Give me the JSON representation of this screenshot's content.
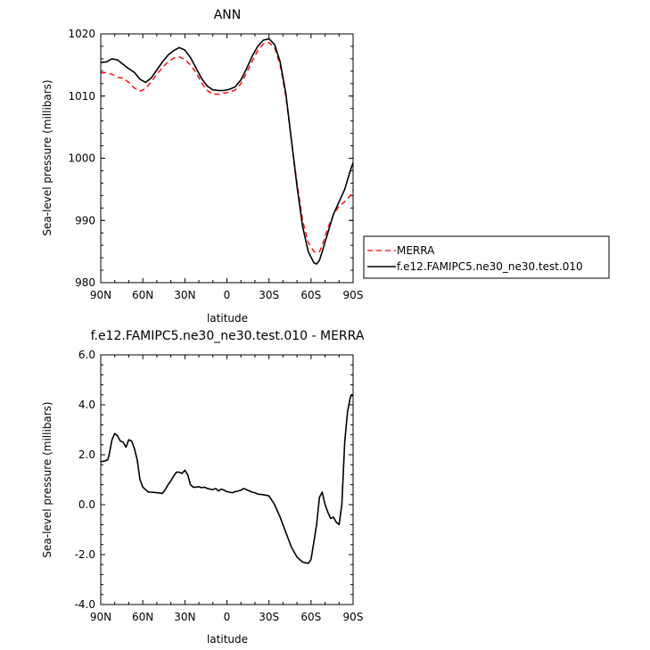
{
  "chart_data": [
    {
      "type": "line",
      "title": "ANN",
      "xlabel": "latitude",
      "ylabel": "Sea-level pressure (millibars)",
      "x_ticks": [
        "90N",
        "60N",
        "30N",
        "0",
        "30S",
        "60S",
        "90S"
      ],
      "y_ticks": [
        "980",
        "990",
        "1000",
        "1010",
        "1020"
      ],
      "xlim": [
        90,
        -90
      ],
      "ylim": [
        980,
        1020
      ],
      "legend_position": "right",
      "series": [
        {
          "name": "MERRA",
          "color": "#ff0000",
          "dash": "dashed",
          "x": [
            90,
            86,
            82,
            78,
            74,
            70,
            66,
            62,
            58,
            54,
            50,
            46,
            42,
            38,
            34,
            30,
            26,
            22,
            18,
            14,
            10,
            6,
            2,
            -2,
            -6,
            -10,
            -14,
            -18,
            -22,
            -26,
            -30,
            -34,
            -38,
            -42,
            -46,
            -50,
            -54,
            -58,
            -62,
            -64,
            -66,
            -68,
            -72,
            -76,
            -80,
            -84,
            -88,
            -90
          ],
          "y": [
            1013.7,
            1013.8,
            1013.5,
            1013.0,
            1012.9,
            1012.2,
            1011.3,
            1010.8,
            1011.2,
            1012.3,
            1013.5,
            1014.6,
            1015.5,
            1016.1,
            1016.3,
            1015.9,
            1015.0,
            1013.8,
            1012.1,
            1010.9,
            1010.3,
            1010.3,
            1010.5,
            1010.6,
            1011.0,
            1012.0,
            1013.7,
            1015.6,
            1017.3,
            1018.4,
            1018.6,
            1017.8,
            1015.0,
            1010.0,
            1003.0,
            996.0,
            990.0,
            986.5,
            985.0,
            984.8,
            985.0,
            986.0,
            988.8,
            991.0,
            992.3,
            993.0,
            994.0,
            994.9
          ]
        },
        {
          "name": "f.e12.FAMIPC5.ne30_ne30.test.010",
          "color": "#000000",
          "dash": "solid",
          "x": [
            90,
            86,
            82,
            78,
            74,
            70,
            66,
            62,
            58,
            54,
            50,
            46,
            42,
            38,
            34,
            30,
            26,
            22,
            18,
            14,
            10,
            6,
            2,
            -2,
            -6,
            -10,
            -14,
            -18,
            -22,
            -26,
            -30,
            -34,
            -38,
            -42,
            -46,
            -50,
            -54,
            -58,
            -62,
            -64,
            -66,
            -68,
            -72,
            -76,
            -80,
            -84,
            -88,
            -90
          ],
          "y": [
            1015.4,
            1015.5,
            1016.0,
            1015.8,
            1015.1,
            1014.4,
            1013.8,
            1012.7,
            1012.2,
            1012.9,
            1014.2,
            1015.5,
            1016.6,
            1017.3,
            1017.8,
            1017.4,
            1016.2,
            1014.5,
            1012.8,
            1011.6,
            1011.0,
            1010.9,
            1010.9,
            1011.1,
            1011.5,
            1012.6,
            1014.4,
            1016.4,
            1018.0,
            1019.0,
            1019.2,
            1018.3,
            1015.5,
            1010.5,
            1003.0,
            995.5,
            989.0,
            985.0,
            983.2,
            983.0,
            983.6,
            985.0,
            988.0,
            991.0,
            993.0,
            995.0,
            998.0,
            999.3
          ]
        }
      ]
    },
    {
      "type": "line",
      "title": "f.e12.FAMIPC5.ne30_ne30.test.010 - MERRA",
      "xlabel": "latitude",
      "ylabel": "Sea-level pressure (millibars)",
      "x_ticks": [
        "90N",
        "60N",
        "30N",
        "0",
        "30S",
        "60S",
        "90S"
      ],
      "y_ticks": [
        "6.0",
        "4.0",
        "2.0",
        "0.0",
        "-2.0",
        "-4.0"
      ],
      "xlim": [
        90,
        -90
      ],
      "ylim": [
        -4,
        6
      ],
      "series": [
        {
          "color": "#000000",
          "dash": "solid",
          "x": [
            90,
            87,
            85,
            84,
            82,
            80,
            78,
            76,
            74,
            72,
            70,
            68,
            66,
            64,
            62,
            60,
            58,
            56,
            54,
            50,
            46,
            44,
            42,
            40,
            38,
            36,
            34,
            32,
            30,
            28,
            26,
            24,
            22,
            20,
            18,
            16,
            14,
            12,
            10,
            8,
            6,
            4,
            2,
            0,
            -2,
            -4,
            -6,
            -8,
            -10,
            -12,
            -14,
            -16,
            -18,
            -20,
            -22,
            -26,
            -30,
            -34,
            -38,
            -42,
            -46,
            -50,
            -54,
            -58,
            -60,
            -62,
            -64,
            -66,
            -68,
            -70,
            -72,
            -74,
            -76,
            -78,
            -80,
            -82,
            -84,
            -86,
            -88,
            -89,
            -90
          ],
          "y": [
            1.72,
            1.75,
            1.8,
            2.0,
            2.6,
            2.85,
            2.75,
            2.55,
            2.5,
            2.3,
            2.6,
            2.55,
            2.25,
            1.8,
            1.0,
            0.7,
            0.6,
            0.5,
            0.5,
            0.48,
            0.45,
            0.6,
            0.8,
            0.95,
            1.15,
            1.3,
            1.3,
            1.25,
            1.38,
            1.2,
            0.8,
            0.7,
            0.7,
            0.72,
            0.68,
            0.7,
            0.65,
            0.62,
            0.6,
            0.65,
            0.55,
            0.62,
            0.58,
            0.52,
            0.5,
            0.48,
            0.52,
            0.55,
            0.58,
            0.65,
            0.6,
            0.55,
            0.5,
            0.48,
            0.42,
            0.4,
            0.35,
            0.0,
            -0.5,
            -1.1,
            -1.7,
            -2.1,
            -2.3,
            -2.35,
            -2.2,
            -1.5,
            -0.8,
            0.3,
            0.5,
            0.0,
            -0.3,
            -0.55,
            -0.5,
            -0.7,
            -0.8,
            0.0,
            2.5,
            3.7,
            4.3,
            4.4,
            4.35
          ]
        }
      ]
    }
  ]
}
